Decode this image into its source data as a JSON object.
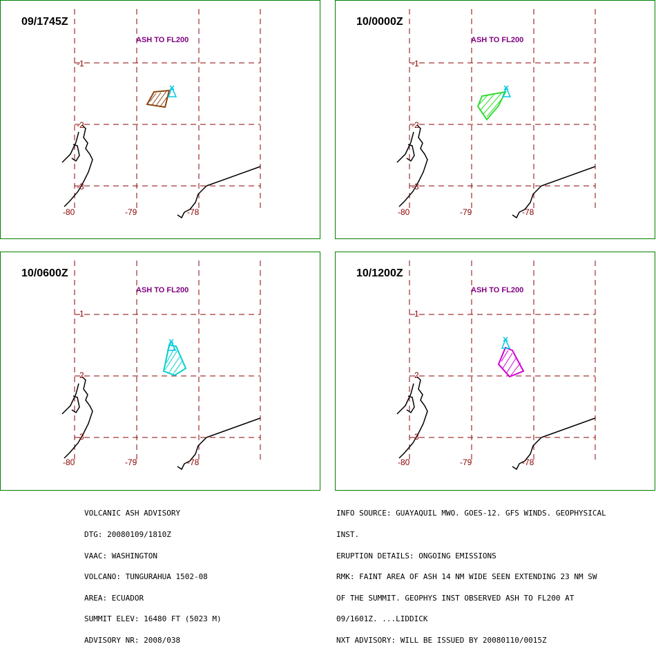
{
  "panels": [
    {
      "time": "09/1745Z",
      "ash_label": "ASH TO FL200",
      "ash_color": "#8B4513"
    },
    {
      "time": "10/0000Z",
      "ash_label": "ASH TO FL200",
      "ash_color": "#33DD33"
    },
    {
      "time": "10/0600Z",
      "ash_label": "ASH TO FL200",
      "ash_color": "#00D0D0"
    },
    {
      "time": "10/1200Z",
      "ash_label": "ASH TO FL200",
      "ash_color": "#D000D0"
    }
  ],
  "lat_labels": [
    "-1",
    "-2",
    "-3"
  ],
  "lon_labels": [
    "-80",
    "-79",
    "-78"
  ],
  "colors": {
    "grid": "#8B0000",
    "label": "#800080",
    "volcano": "#00C8E0",
    "border": "#008000"
  },
  "advisory_left": [
    "VOLCANIC ASH ADVISORY",
    "DTG: 20080109/1810Z",
    "VAAC: WASHINGTON",
    "VOLCANO: TUNGURAHUA 1502-08",
    "AREA: ECUADOR",
    "SUMMIT ELEV: 16480 FT (5023 M)",
    "ADVISORY NR: 2008/038"
  ],
  "advisory_right": [
    "INFO SOURCE: GUAYAQUIL MWO. GOES-12. GFS WINDS. GEOPHYSICAL",
    "INST.",
    "ERUPTION DETAILS: ONGOING EMISSIONS",
    "RMK: FAINT AREA OF ASH 14 NM WIDE SEEN EXTENDING 23 NM SW",
    "OF THE SUMMIT. GEOPHYS INST OBSERVED ASH TO FL200 AT",
    "09/1601Z. ...LIDDICK",
    "NXT ADVISORY: WILL BE ISSUED BY 20080110/0015Z"
  ]
}
